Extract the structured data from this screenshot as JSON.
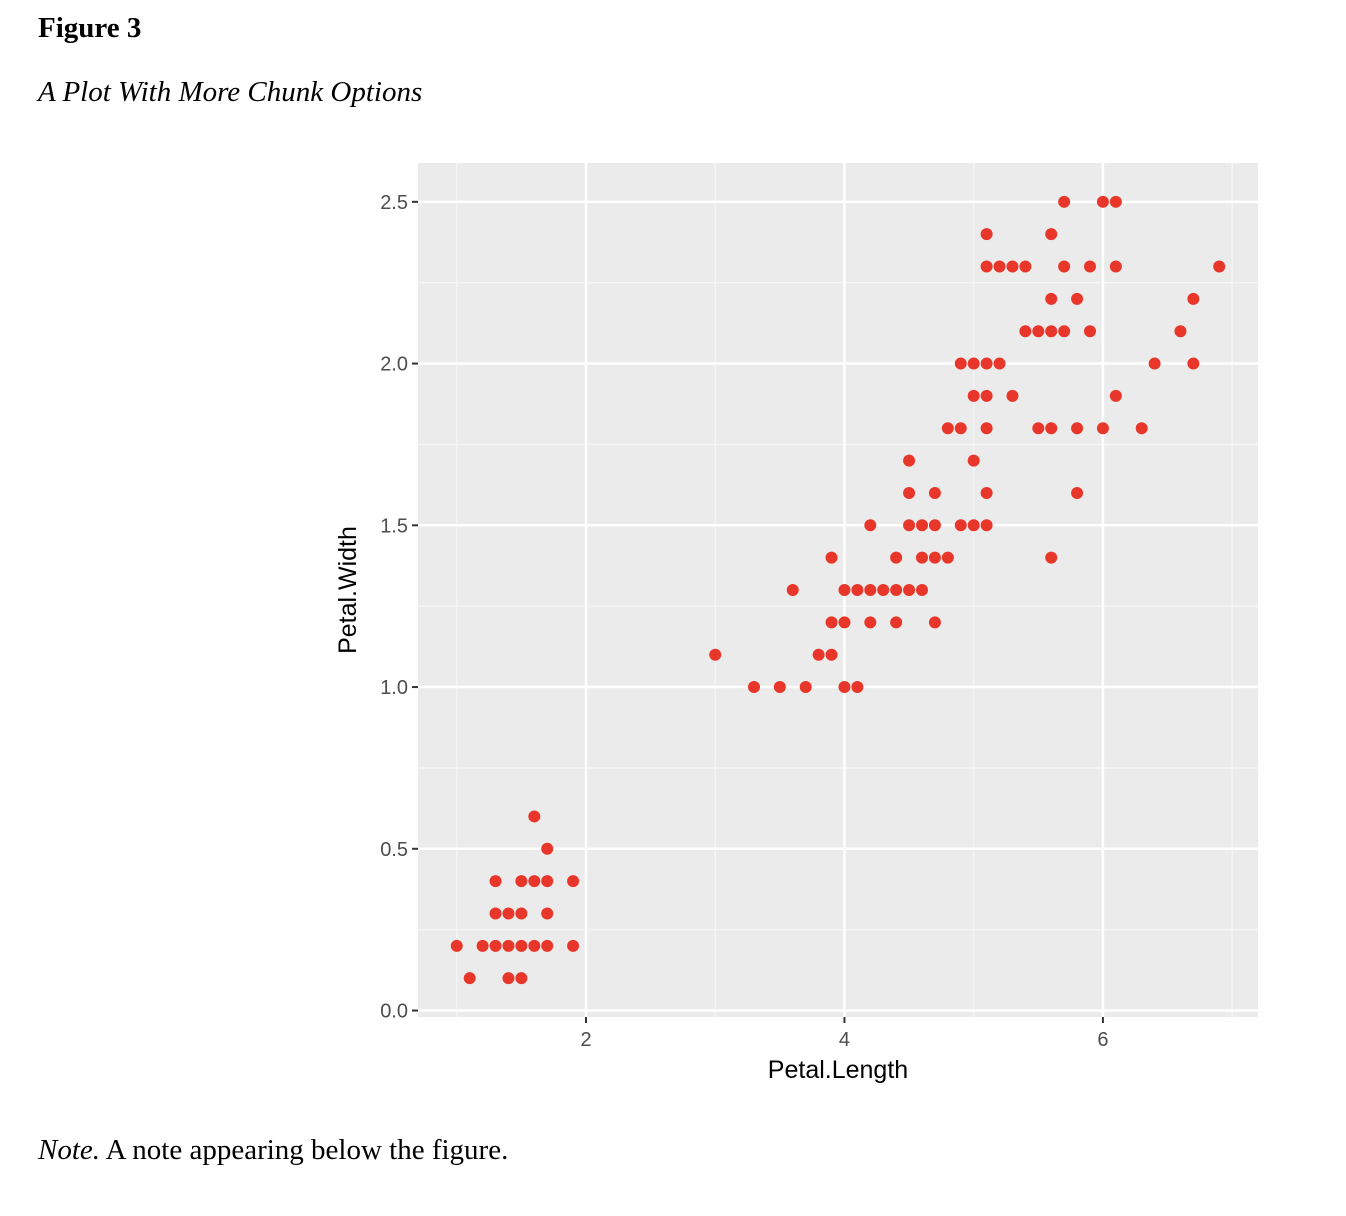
{
  "figure": {
    "label": "Figure 3",
    "title": "A Plot With More Chunk Options",
    "note_label": "Note.",
    "note_text": " A note appearing below the figure."
  },
  "colors": {
    "panel": "#ebebeb",
    "grid_major": "#ffffff",
    "grid_minor": "#f5f5f5",
    "point": "#e8372a"
  },
  "chart_data": {
    "type": "scatter",
    "xlabel": "Petal.Length",
    "ylabel": "Petal.Width",
    "xlim": [
      0.7,
      7.2
    ],
    "ylim": [
      -0.02,
      2.62
    ],
    "x_ticks": [
      2,
      4,
      6
    ],
    "x_tick_labels": [
      "2",
      "4",
      "6"
    ],
    "y_ticks": [
      0,
      0.5,
      1,
      1.5,
      2,
      2.5
    ],
    "y_tick_labels": [
      "0.0",
      "0.5",
      "1.0",
      "1.5",
      "2.0",
      "2.5"
    ],
    "grid": true,
    "points": [
      [
        1.0,
        0.2
      ],
      [
        1.1,
        0.1
      ],
      [
        1.2,
        0.2
      ],
      [
        1.3,
        0.2
      ],
      [
        1.3,
        0.3
      ],
      [
        1.3,
        0.4
      ],
      [
        1.4,
        0.1
      ],
      [
        1.4,
        0.2
      ],
      [
        1.4,
        0.3
      ],
      [
        1.5,
        0.1
      ],
      [
        1.5,
        0.2
      ],
      [
        1.5,
        0.3
      ],
      [
        1.5,
        0.4
      ],
      [
        1.6,
        0.2
      ],
      [
        1.6,
        0.4
      ],
      [
        1.6,
        0.6
      ],
      [
        1.7,
        0.2
      ],
      [
        1.7,
        0.3
      ],
      [
        1.7,
        0.4
      ],
      [
        1.7,
        0.5
      ],
      [
        1.9,
        0.2
      ],
      [
        1.9,
        0.4
      ],
      [
        3.0,
        1.1
      ],
      [
        3.3,
        1.0
      ],
      [
        3.5,
        1.0
      ],
      [
        3.6,
        1.3
      ],
      [
        3.7,
        1.0
      ],
      [
        3.8,
        1.1
      ],
      [
        3.9,
        1.1
      ],
      [
        3.9,
        1.2
      ],
      [
        3.9,
        1.4
      ],
      [
        4.0,
        1.0
      ],
      [
        4.0,
        1.2
      ],
      [
        4.0,
        1.3
      ],
      [
        4.1,
        1.0
      ],
      [
        4.1,
        1.3
      ],
      [
        4.2,
        1.2
      ],
      [
        4.2,
        1.3
      ],
      [
        4.2,
        1.5
      ],
      [
        4.3,
        1.3
      ],
      [
        4.4,
        1.2
      ],
      [
        4.4,
        1.3
      ],
      [
        4.4,
        1.4
      ],
      [
        4.5,
        1.3
      ],
      [
        4.5,
        1.5
      ],
      [
        4.5,
        1.6
      ],
      [
        4.5,
        1.7
      ],
      [
        4.6,
        1.3
      ],
      [
        4.6,
        1.4
      ],
      [
        4.6,
        1.5
      ],
      [
        4.7,
        1.2
      ],
      [
        4.7,
        1.4
      ],
      [
        4.7,
        1.5
      ],
      [
        4.7,
        1.6
      ],
      [
        4.8,
        1.4
      ],
      [
        4.8,
        1.8
      ],
      [
        4.9,
        1.5
      ],
      [
        4.9,
        1.8
      ],
      [
        4.9,
        2.0
      ],
      [
        5.0,
        1.5
      ],
      [
        5.0,
        1.7
      ],
      [
        5.0,
        1.9
      ],
      [
        5.0,
        2.0
      ],
      [
        5.1,
        1.5
      ],
      [
        5.1,
        1.6
      ],
      [
        5.1,
        1.8
      ],
      [
        5.1,
        1.9
      ],
      [
        5.1,
        2.0
      ],
      [
        5.1,
        2.3
      ],
      [
        5.1,
        2.4
      ],
      [
        5.2,
        2.0
      ],
      [
        5.2,
        2.3
      ],
      [
        5.3,
        1.9
      ],
      [
        5.3,
        2.3
      ],
      [
        5.4,
        2.1
      ],
      [
        5.4,
        2.3
      ],
      [
        5.5,
        1.8
      ],
      [
        5.5,
        2.1
      ],
      [
        5.6,
        1.4
      ],
      [
        5.6,
        1.8
      ],
      [
        5.6,
        2.1
      ],
      [
        5.6,
        2.2
      ],
      [
        5.6,
        2.4
      ],
      [
        5.7,
        2.1
      ],
      [
        5.7,
        2.3
      ],
      [
        5.7,
        2.5
      ],
      [
        5.8,
        1.6
      ],
      [
        5.8,
        1.8
      ],
      [
        5.8,
        2.2
      ],
      [
        5.9,
        2.1
      ],
      [
        5.9,
        2.3
      ],
      [
        6.0,
        1.8
      ],
      [
        6.0,
        2.5
      ],
      [
        6.1,
        1.9
      ],
      [
        6.1,
        2.3
      ],
      [
        6.1,
        2.5
      ],
      [
        6.3,
        1.8
      ],
      [
        6.4,
        2.0
      ],
      [
        6.6,
        2.1
      ],
      [
        6.7,
        2.0
      ],
      [
        6.7,
        2.2
      ],
      [
        6.9,
        2.3
      ]
    ]
  }
}
